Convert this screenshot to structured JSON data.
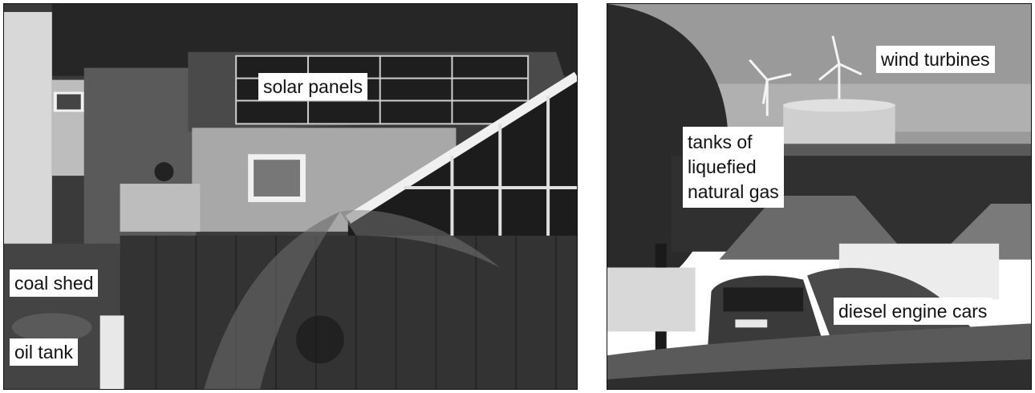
{
  "left_photo": {
    "labels": {
      "solar_panels": "solar panels",
      "coal_shed": "coal shed",
      "oil_tank": "oil tank"
    }
  },
  "right_photo": {
    "labels": {
      "wind_turbines": "wind turbines",
      "gas_tanks_line1": "tanks of",
      "gas_tanks_line2": "liquefied",
      "gas_tanks_line3": "natural gas",
      "diesel_cars": "diesel engine cars"
    }
  },
  "colors": {
    "sky": "#9a9a9a",
    "dark_foliage": "#2a2a2a",
    "fence": "#333333",
    "wall": "#a8a8a8"
  }
}
